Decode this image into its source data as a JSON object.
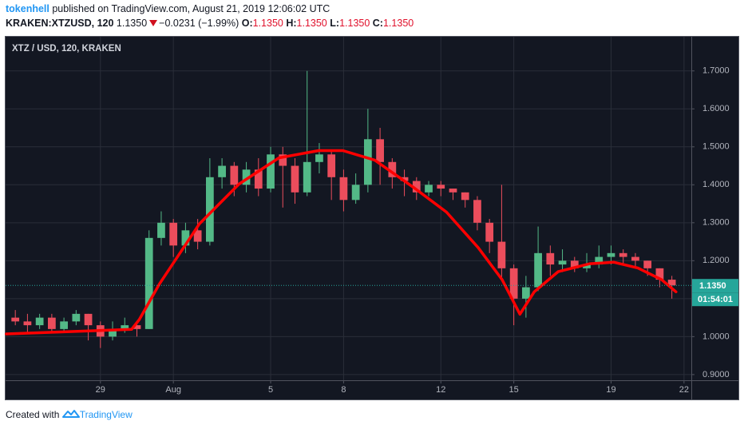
{
  "header": {
    "author": "tokenhell",
    "published": "published on TradingView.com, August 21, 2019 12:06:02 UTC",
    "symbol": "KRAKEN:XTZUSD, 120",
    "price": "1.1350",
    "change": "−0.0231 (−1.99%)",
    "ohlc": [
      {
        "label": "O:",
        "value": "1.1350"
      },
      {
        "label": "H:",
        "value": "1.1350"
      },
      {
        "label": "L:",
        "value": "1.1350"
      },
      {
        "label": "C:",
        "value": "1.1350"
      }
    ]
  },
  "chart_data": {
    "type": "candlestick",
    "title": "XTZ / USD, 120, KRAKEN",
    "up_color": "#53b987",
    "down_color": "#eb4d5c",
    "grid": true,
    "x": [
      25.5,
      26.0,
      26.5,
      27.0,
      27.5,
      28.0,
      28.5,
      29.0,
      29.5,
      30.0,
      30.5,
      31.0,
      31.5,
      32.0,
      32.5,
      33.0,
      33.5,
      34.0,
      34.5,
      35.0,
      35.5,
      36.0,
      36.5,
      37.0,
      37.5,
      38.0,
      38.5,
      39.0,
      39.5,
      40.0,
      40.5,
      41.0,
      41.5,
      42.0,
      42.5,
      43.0,
      43.5,
      44.0,
      44.5,
      45.0,
      45.5,
      46.0,
      46.5,
      47.0,
      47.5,
      48.0,
      48.5,
      49.0,
      49.5,
      50.0,
      50.5,
      51.0,
      51.5,
      52.0,
      52.5
    ],
    "open": [
      1.05,
      1.04,
      1.03,
      1.05,
      1.02,
      1.04,
      1.06,
      1.03,
      1.0,
      1.02,
      1.03,
      1.02,
      1.26,
      1.3,
      1.24,
      1.28,
      1.25,
      1.42,
      1.45,
      1.4,
      1.44,
      1.39,
      1.48,
      1.45,
      1.38,
      1.46,
      1.48,
      1.42,
      1.36,
      1.4,
      1.52,
      1.46,
      1.42,
      1.41,
      1.38,
      1.4,
      1.39,
      1.38,
      1.36,
      1.3,
      1.25,
      1.18,
      1.1,
      1.13,
      1.22,
      1.19,
      1.2,
      1.18,
      1.19,
      1.21,
      1.22,
      1.21,
      1.2,
      1.18,
      1.15
    ],
    "high": [
      1.07,
      1.06,
      1.06,
      1.06,
      1.05,
      1.07,
      1.06,
      1.04,
      1.04,
      1.05,
      1.04,
      1.28,
      1.33,
      1.31,
      1.3,
      1.31,
      1.47,
      1.47,
      1.46,
      1.46,
      1.47,
      1.5,
      1.5,
      1.47,
      1.7,
      1.51,
      1.49,
      1.44,
      1.43,
      1.6,
      1.55,
      1.47,
      1.44,
      1.42,
      1.41,
      1.41,
      1.39,
      1.38,
      1.37,
      1.31,
      1.4,
      1.19,
      1.16,
      1.29,
      1.24,
      1.23,
      1.21,
      1.22,
      1.24,
      1.24,
      1.23,
      1.22,
      1.2,
      1.18,
      1.16
    ],
    "low": [
      1.03,
      1.01,
      1.02,
      1.01,
      1.01,
      1.03,
      0.99,
      0.97,
      0.99,
      1.01,
      1.0,
      1.02,
      1.24,
      1.21,
      1.22,
      1.23,
      1.24,
      1.39,
      1.37,
      1.38,
      1.37,
      1.38,
      1.34,
      1.35,
      1.37,
      1.43,
      1.36,
      1.33,
      1.35,
      1.38,
      1.4,
      1.39,
      1.37,
      1.36,
      1.37,
      1.37,
      1.36,
      1.34,
      1.28,
      1.22,
      1.15,
      1.03,
      1.05,
      1.12,
      1.16,
      1.17,
      1.17,
      1.17,
      1.18,
      1.19,
      1.19,
      1.18,
      1.16,
      1.13,
      1.1
    ],
    "close": [
      1.04,
      1.03,
      1.05,
      1.02,
      1.04,
      1.06,
      1.03,
      1.0,
      1.02,
      1.03,
      1.02,
      1.26,
      1.3,
      1.24,
      1.28,
      1.25,
      1.42,
      1.45,
      1.4,
      1.44,
      1.39,
      1.48,
      1.45,
      1.38,
      1.46,
      1.48,
      1.42,
      1.36,
      1.4,
      1.52,
      1.46,
      1.42,
      1.41,
      1.38,
      1.4,
      1.39,
      1.38,
      1.36,
      1.3,
      1.25,
      1.18,
      1.1,
      1.13,
      1.22,
      1.19,
      1.2,
      1.18,
      1.19,
      1.21,
      1.22,
      1.21,
      1.2,
      1.18,
      1.15,
      1.135
    ],
    "overlay": {
      "color": "#ff0000",
      "x": [
        25.13,
        30.28,
        30.6,
        31.43,
        33.07,
        34.7,
        36.34,
        37.98,
        38.97,
        40.28,
        41.92,
        43.23,
        44.54,
        45.52,
        46.25,
        46.84,
        47.82,
        49.13,
        50.11,
        51.1,
        52.08,
        52.67
      ],
      "values": [
        1.007,
        1.019,
        1.045,
        1.139,
        1.297,
        1.402,
        1.471,
        1.49,
        1.49,
        1.465,
        1.391,
        1.328,
        1.234,
        1.15,
        1.059,
        1.118,
        1.171,
        1.192,
        1.196,
        1.181,
        1.15,
        1.118
      ]
    },
    "last_price": {
      "value": 1.135,
      "label": "1.1350"
    },
    "countdown": "01:54:01",
    "xlim": [
      25.1,
      53.3
    ],
    "ylim": [
      0.885,
      1.79
    ],
    "xticks": [
      {
        "value": 29,
        "label": "29"
      },
      {
        "value": 32,
        "label": "Aug"
      },
      {
        "value": 36,
        "label": "5"
      },
      {
        "value": 39,
        "label": "8"
      },
      {
        "value": 43,
        "label": "12"
      },
      {
        "value": 46,
        "label": "15"
      },
      {
        "value": 50,
        "label": "19"
      },
      {
        "value": 53,
        "label": "22"
      }
    ],
    "yticks": [
      {
        "value": 0.9,
        "label": "0.9000"
      },
      {
        "value": 1.0,
        "label": "1.0000"
      },
      {
        "value": 1.1,
        "label": "1.1000"
      },
      {
        "value": 1.2,
        "label": "1.2000"
      },
      {
        "value": 1.3,
        "label": "1.3000"
      },
      {
        "value": 1.4,
        "label": "1.4000"
      },
      {
        "value": 1.5,
        "label": "1.5000"
      },
      {
        "value": 1.6,
        "label": "1.6000"
      },
      {
        "value": 1.7,
        "label": "1.7000"
      }
    ]
  },
  "footer": {
    "text": "Created with",
    "brand": "TradingView"
  }
}
